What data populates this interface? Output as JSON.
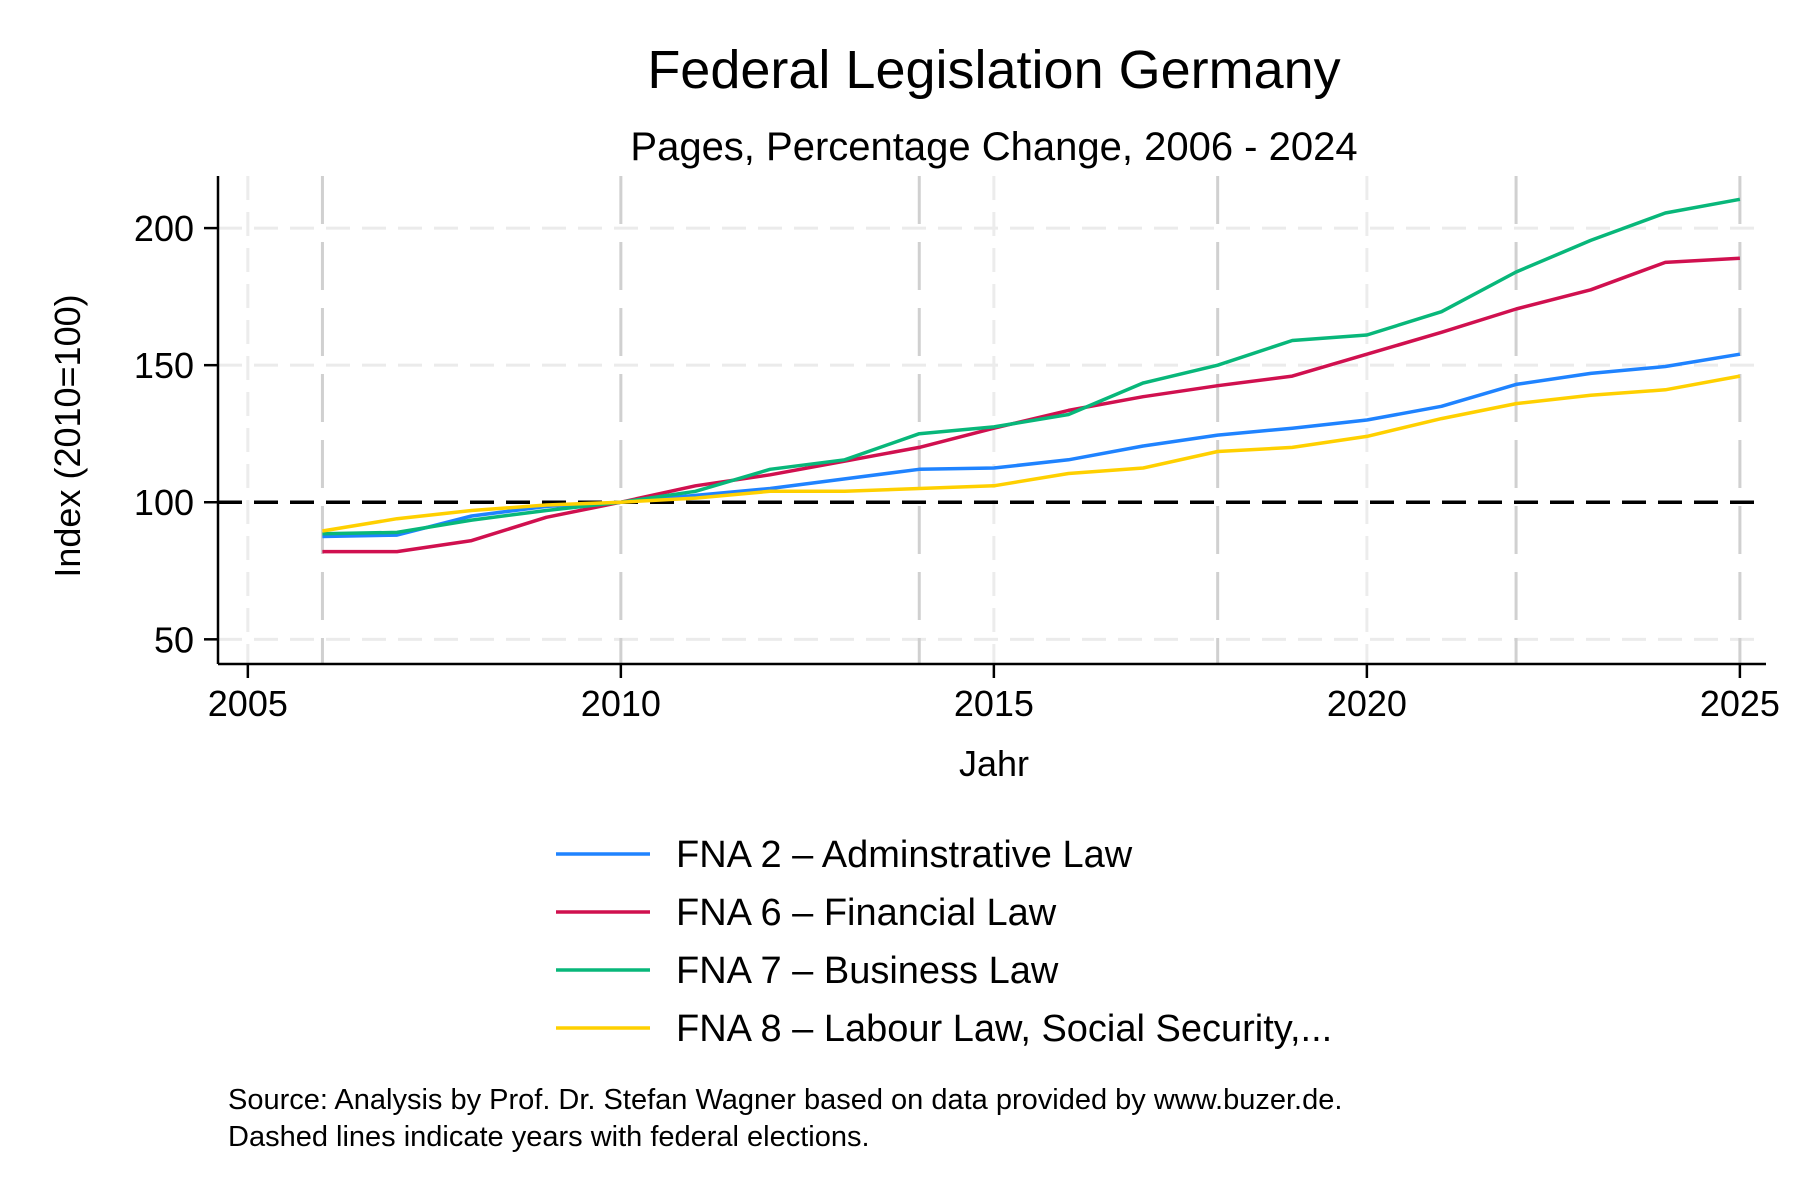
{
  "chart_data": {
    "type": "line",
    "title": "Federal Legislation Germany",
    "subtitle": "Pages, Percentage Change, 2006 - 2024",
    "xlabel": "Jahr",
    "ylabel": "Index (2010=100)",
    "xlim": [
      2004.6,
      2025.35
    ],
    "ylim": [
      41,
      219
    ],
    "xticks": [
      2005,
      2010,
      2015,
      2020,
      2025
    ],
    "yticks": [
      50,
      100,
      150,
      200
    ],
    "grid": true,
    "reference_line": {
      "y": 100,
      "style": "dashed",
      "color": "#000000"
    },
    "election_years": [
      2006,
      2010,
      2014,
      2018,
      2022,
      2025
    ],
    "x": [
      2006,
      2007,
      2008,
      2009,
      2010,
      2011,
      2012,
      2013,
      2014,
      2015,
      2016,
      2017,
      2018,
      2019,
      2020,
      2021,
      2022,
      2023,
      2024,
      2025
    ],
    "series": [
      {
        "name": "FNA 2 – Adminstrative Law",
        "color": "#1f83ff",
        "values": [
          87.5,
          88,
          95,
          98.5,
          100,
          102.5,
          105,
          108.5,
          112,
          112.5,
          115.5,
          120.5,
          124.5,
          127,
          130,
          135,
          143,
          147,
          149.5,
          154
        ]
      },
      {
        "name": "FNA 6 – Financial Law",
        "color": "#d0104f",
        "values": [
          82,
          82,
          86,
          94.5,
          100,
          106,
          110,
          115,
          120,
          127,
          133.5,
          138.5,
          142.5,
          146,
          154,
          162,
          170.5,
          177.5,
          187.5,
          189
        ]
      },
      {
        "name": "FNA 7 – Business Law",
        "color": "#08b77a",
        "values": [
          88.5,
          89,
          93.5,
          97,
          100,
          104,
          112,
          115.5,
          125,
          127.5,
          132,
          143.5,
          150,
          159,
          161,
          169.5,
          184,
          195.5,
          205.5,
          210.5
        ]
      },
      {
        "name": "FNA 8 – Labour Law, Social Security,...",
        "color": "#ffd000",
        "values": [
          89.5,
          94,
          97,
          99,
          100,
          101.5,
          104,
          104,
          105,
          106,
          110.5,
          112.5,
          118.5,
          120,
          124,
          130.5,
          136,
          139,
          141,
          146
        ]
      }
    ],
    "legend_position": "bottom",
    "notes": [
      "Source: Analysis by Prof. Dr. Stefan Wagner based on data provided by www.buzer.de.",
      "Dashed lines indicate years with federal elections."
    ]
  }
}
